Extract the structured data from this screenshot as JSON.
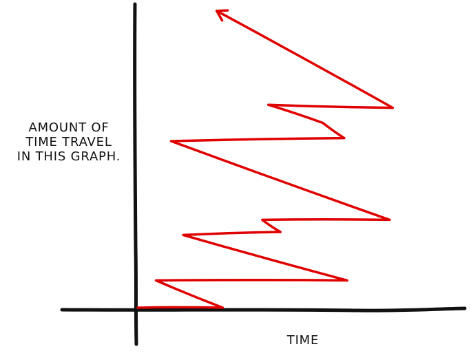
{
  "chart_data": {
    "type": "line",
    "title": "",
    "xlabel": "TIME",
    "ylabel_lines": [
      "AMOUNT OF",
      "TIME TRAVEL",
      "IN THIS GRAPH."
    ],
    "grid": false,
    "legend": false,
    "x_ticks": false,
    "y_ticks": false,
    "xlim": [
      0,
      100
    ],
    "ylim": [
      0,
      100
    ],
    "series": [
      {
        "color": "#e00000",
        "arrow_end": true,
        "points": [
          {
            "x": 0,
            "y": 0
          },
          {
            "x": 28,
            "y": 0
          },
          {
            "x": 6,
            "y": 9
          },
          {
            "x": 69,
            "y": 9
          },
          {
            "x": 15,
            "y": 24
          },
          {
            "x": 47,
            "y": 25
          },
          {
            "x": 41,
            "y": 29
          },
          {
            "x": 83,
            "y": 29
          },
          {
            "x": 11,
            "y": 55
          },
          {
            "x": 68,
            "y": 56
          },
          {
            "x": 61,
            "y": 61
          },
          {
            "x": 43,
            "y": 67
          },
          {
            "x": 84,
            "y": 66
          },
          {
            "x": 26,
            "y": 98
          }
        ]
      }
    ]
  }
}
